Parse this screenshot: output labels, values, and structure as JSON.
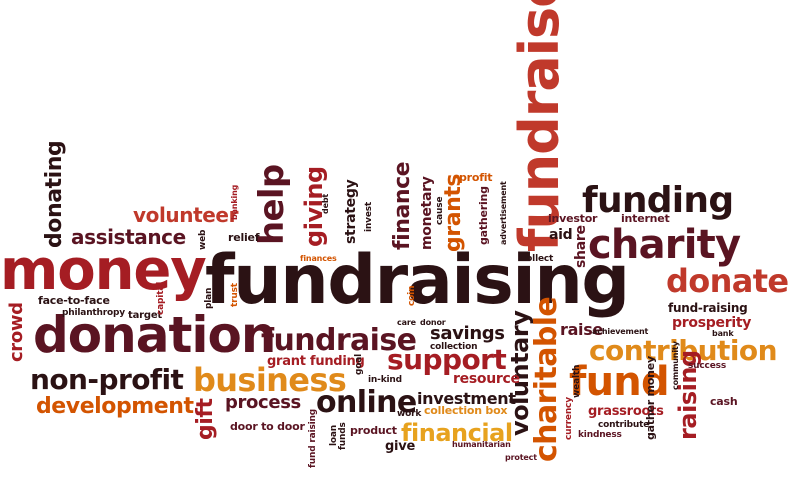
{
  "palette": {
    "dark": "#2b1214",
    "maroon": "#5a1422",
    "red": "#a51d23",
    "brick": "#c0392b",
    "orange": "#d35400",
    "amber": "#e08a1a",
    "gold": "#e7a21e"
  },
  "words": [
    {
      "text": "fundraising",
      "c": "dark"
    },
    {
      "text": "fundraiser",
      "c": "brick"
    },
    {
      "text": "money",
      "c": "red"
    },
    {
      "text": "donation",
      "c": "maroon"
    },
    {
      "text": "charity",
      "c": "maroon"
    },
    {
      "text": "donate",
      "c": "brick"
    },
    {
      "text": "funding",
      "c": "dark"
    },
    {
      "text": "contribution",
      "c": "amber"
    },
    {
      "text": "business",
      "c": "amber"
    },
    {
      "text": "fundraise",
      "c": "maroon"
    },
    {
      "text": "support",
      "c": "red"
    },
    {
      "text": "non-profit",
      "c": "dark"
    },
    {
      "text": "fund",
      "c": "orange"
    },
    {
      "text": "online",
      "c": "dark"
    },
    {
      "text": "development",
      "c": "orange"
    },
    {
      "text": "financial",
      "c": "gold"
    },
    {
      "text": "assistance",
      "c": "maroon"
    },
    {
      "text": "volunteer",
      "c": "brick"
    },
    {
      "text": "donating",
      "c": "dark"
    },
    {
      "text": "help",
      "c": "maroon"
    },
    {
      "text": "giving",
      "c": "red"
    },
    {
      "text": "finance",
      "c": "maroon"
    },
    {
      "text": "grants",
      "c": "orange"
    },
    {
      "text": "charitable",
      "c": "orange"
    },
    {
      "text": "voluntary",
      "c": "dark"
    },
    {
      "text": "raising",
      "c": "red"
    },
    {
      "text": "crowd",
      "c": "red"
    },
    {
      "text": "gift",
      "c": "red"
    },
    {
      "text": "process",
      "c": "maroon"
    },
    {
      "text": "savings",
      "c": "dark"
    },
    {
      "text": "raise",
      "c": "maroon"
    },
    {
      "text": "prosperity",
      "c": "red"
    },
    {
      "text": "fund-raising",
      "c": "dark"
    },
    {
      "text": "investment",
      "c": "dark"
    },
    {
      "text": "resource",
      "c": "red"
    },
    {
      "text": "grant funding",
      "c": "red"
    },
    {
      "text": "face-to-face",
      "c": "dark"
    },
    {
      "text": "philanthropy",
      "c": "dark"
    },
    {
      "text": "strategy",
      "c": "dark"
    },
    {
      "text": "monetary",
      "c": "maroon"
    },
    {
      "text": "profit",
      "c": "orange"
    },
    {
      "text": "investor",
      "c": "maroon"
    },
    {
      "text": "internet",
      "c": "maroon"
    },
    {
      "text": "aid",
      "c": "dark"
    },
    {
      "text": "share",
      "c": "maroon"
    },
    {
      "text": "collection box",
      "c": "amber"
    },
    {
      "text": "door to door",
      "c": "maroon"
    },
    {
      "text": "product",
      "c": "maroon"
    },
    {
      "text": "give",
      "c": "dark"
    },
    {
      "text": "grassroots",
      "c": "red"
    },
    {
      "text": "gather money",
      "c": "dark"
    },
    {
      "text": "kindness",
      "c": "maroon"
    },
    {
      "text": "contribute",
      "c": "dark"
    },
    {
      "text": "cash",
      "c": "maroon"
    },
    {
      "text": "collect",
      "c": "dark"
    },
    {
      "text": "relief",
      "c": "dark"
    },
    {
      "text": "goal",
      "c": "dark"
    },
    {
      "text": "in-kind",
      "c": "dark"
    },
    {
      "text": "work",
      "c": "dark"
    },
    {
      "text": "success",
      "c": "maroon"
    },
    {
      "text": "target",
      "c": "dark"
    },
    {
      "text": "collection",
      "c": "dark"
    },
    {
      "text": "fund raising",
      "c": "maroon"
    },
    {
      "text": "funds",
      "c": "dark"
    },
    {
      "text": "loan",
      "c": "dark"
    },
    {
      "text": "protect",
      "c": "maroon"
    },
    {
      "text": "humanitarian",
      "c": "maroon"
    },
    {
      "text": "cause",
      "c": "dark"
    },
    {
      "text": "gathering",
      "c": "maroon"
    },
    {
      "text": "advertisement",
      "c": "dark"
    },
    {
      "text": "invest",
      "c": "dark"
    },
    {
      "text": "capital",
      "c": "red"
    },
    {
      "text": "coin",
      "c": "orange"
    },
    {
      "text": "trust",
      "c": "orange"
    },
    {
      "text": "debt",
      "c": "dark"
    },
    {
      "text": "community",
      "c": "dark"
    },
    {
      "text": "care",
      "c": "dark"
    },
    {
      "text": "donor",
      "c": "dark"
    },
    {
      "text": "web",
      "c": "dark"
    },
    {
      "text": "plan",
      "c": "dark"
    },
    {
      "text": "banking",
      "c": "red"
    },
    {
      "text": "finances",
      "c": "orange"
    },
    {
      "text": "bank",
      "c": "dark"
    },
    {
      "text": "currency",
      "c": "red"
    },
    {
      "text": "wealth",
      "c": "dark"
    },
    {
      "text": "achievement",
      "c": "dark"
    }
  ]
}
